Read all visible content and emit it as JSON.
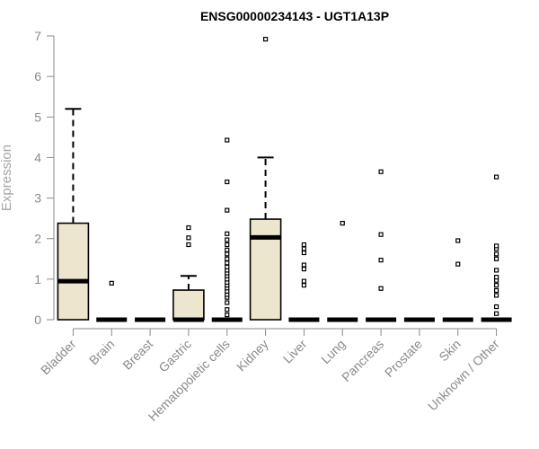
{
  "chart_data": {
    "type": "boxplot",
    "title": "ENSG00000234143 - UGT1A13P",
    "ylabel": "Expression",
    "xlabel": "",
    "ylim": [
      0,
      7
    ],
    "yticks": [
      0,
      1,
      2,
      3,
      4,
      5,
      6,
      7
    ],
    "box_fill": "#ede6ce",
    "categories": [
      "Bladder",
      "Brain",
      "Breast",
      "Gastric",
      "Hematopoietic cells",
      "Kidney",
      "Liver",
      "Lung",
      "Pancreas",
      "Prostate",
      "Skin",
      "Unknown / Other"
    ],
    "boxes": [
      {
        "min": 0,
        "q1": 0,
        "median": 0.95,
        "q3": 2.38,
        "max": 5.2,
        "outliers": []
      },
      {
        "min": 0,
        "q1": 0,
        "median": 0,
        "q3": 0,
        "max": 0,
        "outliers": [
          0.9
        ]
      },
      {
        "min": 0,
        "q1": 0,
        "median": 0,
        "q3": 0,
        "max": 0,
        "outliers": []
      },
      {
        "min": 0,
        "q1": 0,
        "median": 0,
        "q3": 0.73,
        "max": 1.08,
        "outliers": [
          1.85,
          2.02,
          2.27
        ]
      },
      {
        "min": 0,
        "q1": 0,
        "median": 0,
        "q3": 0,
        "max": 0,
        "outliers": [
          0.12,
          0.25,
          0.42,
          0.55,
          0.62,
          0.7,
          0.78,
          0.85,
          0.92,
          1.0,
          1.08,
          1.15,
          1.22,
          1.3,
          1.4,
          1.5,
          1.62,
          1.72,
          1.85,
          1.97,
          2.12,
          2.7,
          3.4,
          4.43
        ]
      },
      {
        "min": 0,
        "q1": 0,
        "median": 2.03,
        "q3": 2.48,
        "max": 4.0,
        "outliers": [
          6.92
        ]
      },
      {
        "min": 0,
        "q1": 0,
        "median": 0,
        "q3": 0,
        "max": 0,
        "outliers": [
          0.85,
          0.95,
          1.25,
          1.35,
          1.65,
          1.75,
          1.85
        ]
      },
      {
        "min": 0,
        "q1": 0,
        "median": 0,
        "q3": 0,
        "max": 0,
        "outliers": [
          2.38
        ]
      },
      {
        "min": 0,
        "q1": 0,
        "median": 0,
        "q3": 0,
        "max": 0,
        "outliers": [
          0.77,
          1.47,
          2.1,
          3.65
        ]
      },
      {
        "min": 0,
        "q1": 0,
        "median": 0,
        "q3": 0,
        "max": 0,
        "outliers": []
      },
      {
        "min": 0,
        "q1": 0,
        "median": 0,
        "q3": 0,
        "max": 0,
        "outliers": [
          1.37,
          1.95
        ]
      },
      {
        "min": 0,
        "q1": 0,
        "median": 0,
        "q3": 0,
        "max": 0,
        "outliers": [
          0.15,
          0.32,
          0.6,
          0.72,
          0.85,
          0.97,
          1.05,
          1.22,
          1.5,
          1.62,
          1.75,
          1.82,
          3.52
        ]
      }
    ]
  }
}
